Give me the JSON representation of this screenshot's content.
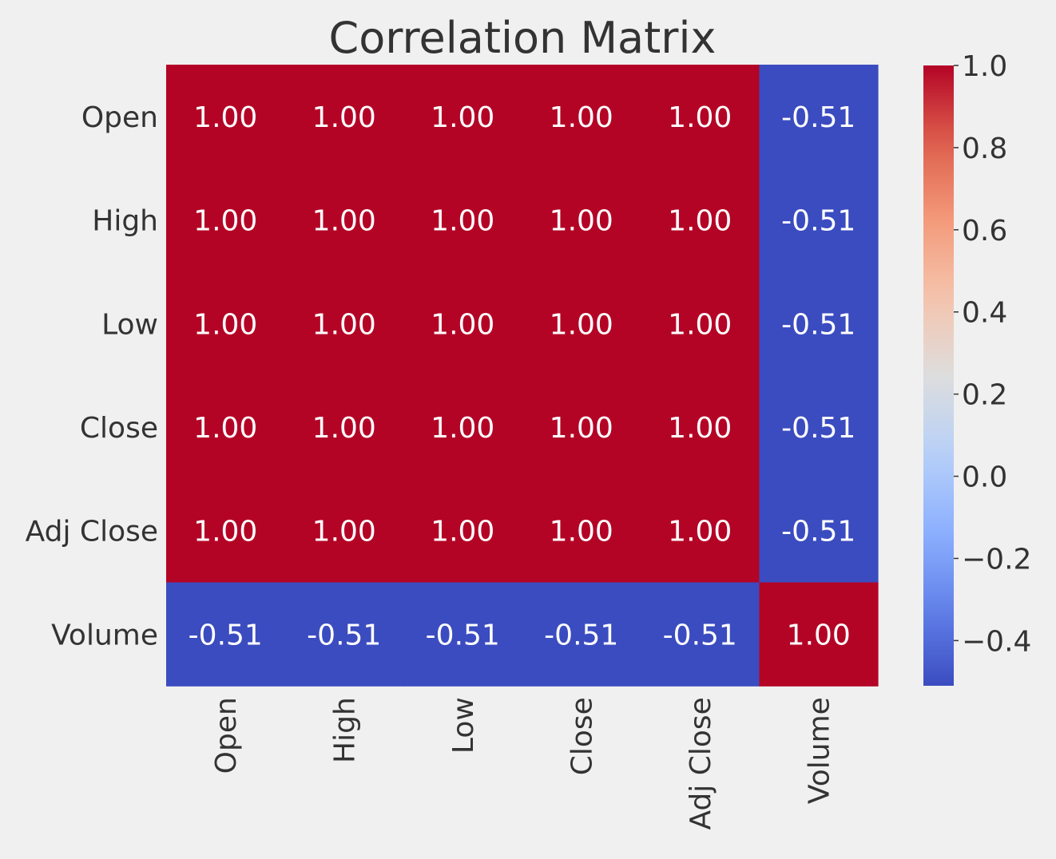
{
  "chart_data": {
    "type": "heatmap",
    "title": "Correlation Matrix",
    "xlabel": "",
    "ylabel": "",
    "x_categories": [
      "Open",
      "High",
      "Low",
      "Close",
      "Adj Close",
      "Volume"
    ],
    "y_categories": [
      "Open",
      "High",
      "Low",
      "Close",
      "Adj Close",
      "Volume"
    ],
    "values": [
      [
        1.0,
        1.0,
        1.0,
        1.0,
        1.0,
        -0.51
      ],
      [
        1.0,
        1.0,
        1.0,
        1.0,
        1.0,
        -0.51
      ],
      [
        1.0,
        1.0,
        1.0,
        1.0,
        1.0,
        -0.51
      ],
      [
        1.0,
        1.0,
        1.0,
        1.0,
        1.0,
        -0.51
      ],
      [
        1.0,
        1.0,
        1.0,
        1.0,
        1.0,
        -0.51
      ],
      [
        -0.51,
        -0.51,
        -0.51,
        -0.51,
        -0.51,
        1.0
      ]
    ],
    "value_format": "0.00",
    "colormap": "coolwarm",
    "colorbar": {
      "range": [
        -0.51,
        1.0
      ],
      "ticks": [
        1.0,
        0.8,
        0.6,
        0.4,
        0.2,
        0.0,
        -0.2,
        -0.4
      ],
      "tick_labels": [
        "1.0",
        "0.8",
        "0.6",
        "0.4",
        "0.2",
        "0.0",
        "−0.2",
        "−0.4"
      ]
    },
    "colors": {
      "background": "#f0f0f0",
      "text": "#333333",
      "cell_text": "#ffffff",
      "high": "#b40426",
      "low": "#3b4cc0"
    },
    "grid": false,
    "legend": "none"
  }
}
